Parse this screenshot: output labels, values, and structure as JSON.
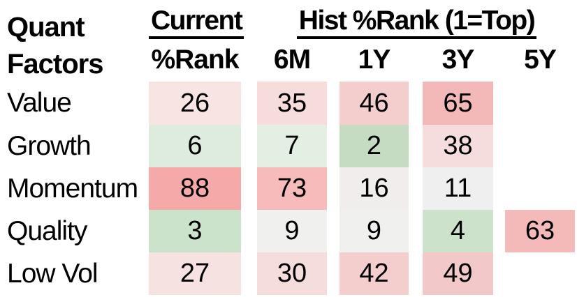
{
  "header": {
    "row_group": {
      "line1": "Quant",
      "line2": "Factors"
    },
    "groups": [
      {
        "label": "Current"
      },
      {
        "label": "Hist %Rank (1=Top)"
      }
    ],
    "sub_columns": [
      "%Rank",
      "6M",
      "1Y",
      "3Y",
      "5Y"
    ]
  },
  "table": {
    "rows": [
      {
        "label": "Value",
        "cells": [
          {
            "value": "26",
            "bg": "#f7e4e3"
          },
          {
            "value": "35",
            "bg": "#f6dcdb"
          },
          {
            "value": "46",
            "bg": "#f4cecd"
          },
          {
            "value": "65",
            "bg": "#f2b9b8"
          }
        ]
      },
      {
        "label": "Growth",
        "cells": [
          {
            "value": "6",
            "bg": "#ddecdd"
          },
          {
            "value": "7",
            "bg": "#e3efe3"
          },
          {
            "value": "2",
            "bg": "#c5dcc3"
          },
          {
            "value": "38",
            "bg": "#f4dddc"
          }
        ]
      },
      {
        "label": "Momentum",
        "cells": [
          {
            "value": "88",
            "bg": "#f5a9a8"
          },
          {
            "value": "73",
            "bg": "#f6bbba"
          },
          {
            "value": "16",
            "bg": "#f2eded"
          },
          {
            "value": "11",
            "bg": "#f0eff0"
          }
        ]
      },
      {
        "label": "Quality",
        "cells": [
          {
            "value": "3",
            "bg": "#cbe2cb"
          },
          {
            "value": "9",
            "bg": "#f0f0ef"
          },
          {
            "value": "9",
            "bg": "#f0f0ef"
          },
          {
            "value": "4",
            "bg": "#cce2cb"
          },
          {
            "value": "63",
            "bg": "#f4bab9"
          }
        ]
      },
      {
        "label": "Low Vol",
        "cells": [
          {
            "value": "27",
            "bg": "#f6e2e1"
          },
          {
            "value": "30",
            "bg": "#f5dddc"
          },
          {
            "value": "42",
            "bg": "#f3cecd"
          },
          {
            "value": "49",
            "bg": "#f2c9c8"
          }
        ]
      }
    ]
  },
  "chart_data": {
    "type": "heatmap",
    "title": "Quant Factors",
    "column_groups": [
      {
        "label": "Current",
        "columns": [
          "%Rank"
        ]
      },
      {
        "label": "Hist %Rank (1=Top)",
        "columns": [
          "6M",
          "1Y",
          "3Y",
          "5Y"
        ]
      }
    ],
    "columns": [
      "Current %Rank",
      "6M",
      "1Y",
      "3Y",
      "5Y"
    ],
    "rows": [
      "Value",
      "Growth",
      "Momentum",
      "Quality",
      "Low Vol"
    ],
    "values": [
      [
        26,
        35,
        46,
        65,
        null
      ],
      [
        6,
        7,
        2,
        38,
        null
      ],
      [
        88,
        73,
        16,
        11,
        null
      ],
      [
        3,
        9,
        9,
        4,
        63
      ],
      [
        27,
        30,
        42,
        49,
        null
      ]
    ],
    "scale_note": "1=Top",
    "color_scale": {
      "low_value": 1,
      "low_color": "#c5dcc3",
      "mid_color": "#f0eff0",
      "high_value": 100,
      "high_color": "#f5a9a8"
    },
    "legend_position": "none",
    "grid": false
  }
}
